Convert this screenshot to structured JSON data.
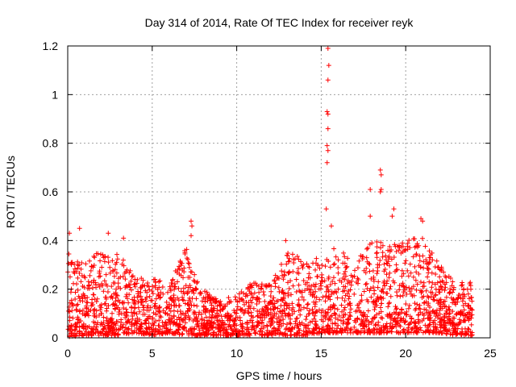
{
  "chart_data": {
    "type": "scatter",
    "title": "Day 314 of 2014, Rate Of TEC Index for receiver reyk",
    "xlabel": "GPS time / hours",
    "ylabel": "ROTI / TECUs",
    "xlim": [
      0,
      25
    ],
    "ylim": [
      0,
      1.2
    ],
    "xticks": [
      0,
      5,
      10,
      15,
      20,
      25
    ],
    "xtick_labels": [
      "0",
      "5",
      "10",
      "15",
      "20",
      "25"
    ],
    "yticks": [
      0,
      0.2,
      0.4,
      0.6,
      0.8,
      1.0,
      1.2
    ],
    "ytick_labels": [
      "0",
      "0.2",
      "0.4",
      "0.6",
      "0.8",
      "1",
      "1.2"
    ],
    "grid": true,
    "marker": "+",
    "color": "#ff0000",
    "notable_points": [
      {
        "x": 15.4,
        "y": 1.19
      },
      {
        "x": 15.45,
        "y": 1.12
      },
      {
        "x": 15.4,
        "y": 1.06
      },
      {
        "x": 15.35,
        "y": 0.93
      },
      {
        "x": 15.4,
        "y": 0.92
      },
      {
        "x": 15.4,
        "y": 0.86
      },
      {
        "x": 15.35,
        "y": 0.79
      },
      {
        "x": 15.4,
        "y": 0.77
      },
      {
        "x": 15.35,
        "y": 0.72
      },
      {
        "x": 15.3,
        "y": 0.53
      },
      {
        "x": 18.5,
        "y": 0.69
      },
      {
        "x": 18.55,
        "y": 0.67
      },
      {
        "x": 18.55,
        "y": 0.61
      },
      {
        "x": 18.5,
        "y": 0.6
      },
      {
        "x": 17.9,
        "y": 0.61
      },
      {
        "x": 17.9,
        "y": 0.5
      },
      {
        "x": 19.3,
        "y": 0.53
      },
      {
        "x": 19.2,
        "y": 0.5
      },
      {
        "x": 20.9,
        "y": 0.49
      },
      {
        "x": 21.0,
        "y": 0.48
      },
      {
        "x": 7.3,
        "y": 0.48
      },
      {
        "x": 7.35,
        "y": 0.46
      },
      {
        "x": 7.3,
        "y": 0.42
      },
      {
        "x": 0.1,
        "y": 0.43
      },
      {
        "x": 0.7,
        "y": 0.45
      },
      {
        "x": 2.4,
        "y": 0.43
      },
      {
        "x": 3.3,
        "y": 0.41
      },
      {
        "x": 12.9,
        "y": 0.4
      },
      {
        "x": 15.6,
        "y": 0.46
      },
      {
        "x": 0.1,
        "y": 0.01
      },
      {
        "x": 0.05,
        "y": 0.11
      }
    ],
    "hourly_envelope": {
      "hours": [
        0,
        1,
        2,
        3,
        4,
        5,
        6,
        7,
        8,
        9,
        10,
        11,
        12,
        13,
        14,
        15,
        16,
        17,
        18,
        19,
        20,
        21,
        22,
        23,
        23.8
      ],
      "typical_max": [
        0.35,
        0.3,
        0.38,
        0.35,
        0.25,
        0.25,
        0.22,
        0.38,
        0.2,
        0.15,
        0.18,
        0.25,
        0.22,
        0.35,
        0.33,
        0.33,
        0.38,
        0.3,
        0.42,
        0.4,
        0.4,
        0.42,
        0.3,
        0.22,
        0.25
      ],
      "typical_min": [
        0.0,
        0.01,
        0.01,
        0.01,
        0.02,
        0.01,
        0.02,
        0.01,
        0.01,
        0.01,
        0.01,
        0.01,
        0.01,
        0.01,
        0.01,
        0.02,
        0.02,
        0.02,
        0.02,
        0.02,
        0.02,
        0.02,
        0.02,
        0.01,
        0.01
      ]
    },
    "x_data_end": 23.95
  }
}
